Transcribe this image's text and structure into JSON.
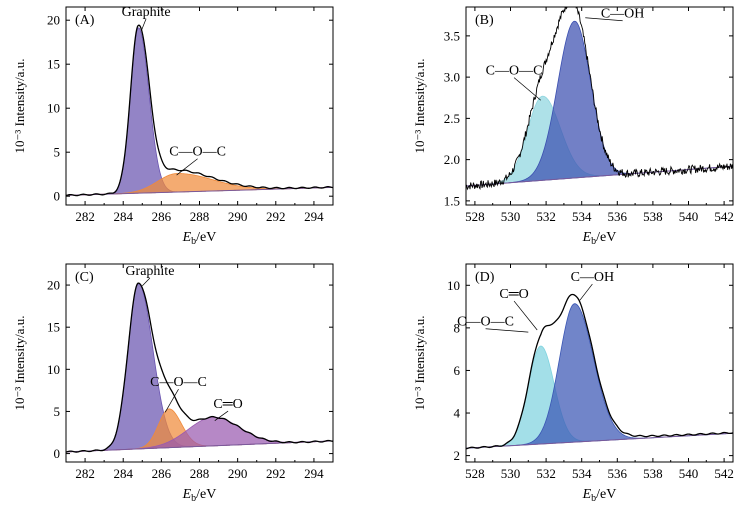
{
  "chart_data": [
    {
      "type": "line",
      "panel": "A",
      "panel_label": "(A)",
      "xlabel_italic": "E",
      "xlabel_sub": "b",
      "xlabel_unit": "/eV",
      "ylabel": "10⁻³ Intensity/a.u.",
      "xlim": [
        281,
        295
      ],
      "ylim": [
        -1,
        21.5
      ],
      "xticks": [
        282,
        284,
        286,
        288,
        290,
        292,
        294
      ],
      "yticks": [
        0,
        5,
        10,
        15,
        20
      ],
      "ytick_labels": [
        "0",
        "5",
        "10",
        "15",
        "20"
      ],
      "background": {
        "x": [
          281,
          295
        ],
        "y": [
          0.1,
          1.0
        ]
      },
      "peaks": [
        {
          "name": "Graphite",
          "center": 284.8,
          "height": 18.8,
          "sigma_left": 0.42,
          "sigma_right": 0.55,
          "color": "#6a55b0"
        },
        {
          "name": "C—O—C",
          "center": 286.8,
          "height": 2.1,
          "sigma_left": 1.0,
          "sigma_right": 1.9,
          "color": "#f08a3a"
        }
      ],
      "envelope": {
        "tail_amp": 0.8,
        "tail_decay": 3.0
      },
      "annotations": [
        {
          "label": "Graphite",
          "x": 285.2,
          "y": 20.5,
          "point_x": 284.95,
          "point_y": 18.8
        },
        {
          "label": "C—O—C",
          "x": 287.9,
          "y": 4.6,
          "point_x": 286.8,
          "point_y": 2.4
        }
      ]
    },
    {
      "type": "line",
      "panel": "B",
      "panel_label": "(B)",
      "xlabel_italic": "E",
      "xlabel_sub": "b",
      "xlabel_unit": "/eV",
      "ylabel": "10⁻³ Intensity/a.u.",
      "xlim": [
        527.5,
        542.5
      ],
      "ylim": [
        1.45,
        3.85
      ],
      "xticks": [
        528,
        530,
        532,
        534,
        536,
        538,
        540,
        542
      ],
      "yticks": [
        1.5,
        2.0,
        2.5,
        3.0,
        3.5
      ],
      "ytick_labels": [
        "1.5",
        "2.0",
        "2.5",
        "3.0",
        "3.5"
      ],
      "background": {
        "x": [
          527.5,
          542.5
        ],
        "y": [
          1.68,
          1.92
        ]
      },
      "peaks": [
        {
          "name": "C—O—C",
          "center": 531.8,
          "height": 1.02,
          "sigma_left": 0.85,
          "sigma_right": 1.0,
          "color": "#8fd5df"
        },
        {
          "name": "C—OH",
          "center": 533.6,
          "height": 1.9,
          "sigma_left": 0.95,
          "sigma_right": 0.9,
          "color": "#3b4fb0"
        }
      ],
      "noise": 0.05,
      "annotations": [
        {
          "label": "C—OH",
          "x": 536.3,
          "y": 3.72,
          "point_x": 534.2,
          "point_y": 3.72
        },
        {
          "label": "C—O—C",
          "x": 530.2,
          "y": 3.03,
          "point_x": 531.7,
          "point_y": 2.72
        }
      ]
    },
    {
      "type": "line",
      "panel": "C",
      "panel_label": "(C)",
      "xlabel_italic": "E",
      "xlabel_sub": "b",
      "xlabel_unit": "/eV",
      "ylabel": "10⁻³ Intensity/a.u.",
      "xlim": [
        281,
        295
      ],
      "ylim": [
        -1,
        22.5
      ],
      "xticks": [
        282,
        284,
        286,
        288,
        290,
        292,
        294
      ],
      "yticks": [
        0,
        5,
        10,
        15,
        20
      ],
      "ytick_labels": [
        "0",
        "5",
        "10",
        "15",
        "20"
      ],
      "background": {
        "x": [
          281,
          295
        ],
        "y": [
          0.2,
          1.5
        ]
      },
      "peaks": [
        {
          "name": "Graphite",
          "center": 284.8,
          "height": 19.6,
          "sigma_left": 0.55,
          "sigma_right": 0.75,
          "color": "#6a55b0"
        },
        {
          "name": "C—O—C",
          "center": 286.4,
          "height": 4.6,
          "sigma_left": 0.55,
          "sigma_right": 0.65,
          "color": "#f08a3a"
        },
        {
          "name": "C=O",
          "center": 288.7,
          "height": 3.4,
          "sigma_left": 1.3,
          "sigma_right": 1.4,
          "color": "#9a5ab0"
        }
      ],
      "envelope": {
        "tail_amp": 0.0,
        "tail_decay": 3.0
      },
      "annotations": [
        {
          "label": "Graphite",
          "x": 285.4,
          "y": 21.2,
          "point_x": 285.0,
          "point_y": 19.9
        },
        {
          "label": "C—O—C",
          "x": 286.9,
          "y": 8.0,
          "point_x": 286.2,
          "point_y": 4.9
        },
        {
          "label": "C═O",
          "x": 289.5,
          "y": 5.4,
          "point_x": 288.8,
          "point_y": 3.9
        }
      ]
    },
    {
      "type": "line",
      "panel": "D",
      "panel_label": "(D)",
      "xlabel_italic": "E",
      "xlabel_sub": "b",
      "xlabel_unit": "/eV",
      "ylabel": "10⁻³ Intensity/a.u.",
      "xlim": [
        527.5,
        542.5
      ],
      "ylim": [
        1.7,
        11
      ],
      "xticks": [
        528,
        530,
        532,
        534,
        536,
        538,
        540,
        542
      ],
      "yticks": [
        2,
        4,
        6,
        8,
        10
      ],
      "ytick_labels": [
        "2",
        "4",
        "6",
        "8",
        "10"
      ],
      "background": {
        "x": [
          527.5,
          542.5
        ],
        "y": [
          2.35,
          3.05
        ]
      },
      "peaks": [
        {
          "name": "C═O",
          "center": 531.7,
          "height": 4.6,
          "sigma_left": 0.7,
          "sigma_right": 0.75,
          "color": "#7fd3df"
        },
        {
          "name": "C—OH",
          "center": 533.6,
          "height": 6.5,
          "sigma_left": 0.85,
          "sigma_right": 1.05,
          "color": "#3a56b4"
        }
      ],
      "envelope": {
        "tail_amp": 0.4,
        "tail_decay": 4.0
      },
      "annotations": [
        {
          "label": "C—OH",
          "x": 534.6,
          "y": 10.2,
          "point_x": 533.9,
          "point_y": 9.3
        },
        {
          "label": "C═O",
          "x": 530.2,
          "y": 9.4,
          "point_x": 531.5,
          "point_y": 7.9
        },
        {
          "label": "C—O—C",
          "x": 528.6,
          "y": 8.1,
          "point_x": 531.0,
          "point_y": 7.8
        }
      ]
    }
  ]
}
